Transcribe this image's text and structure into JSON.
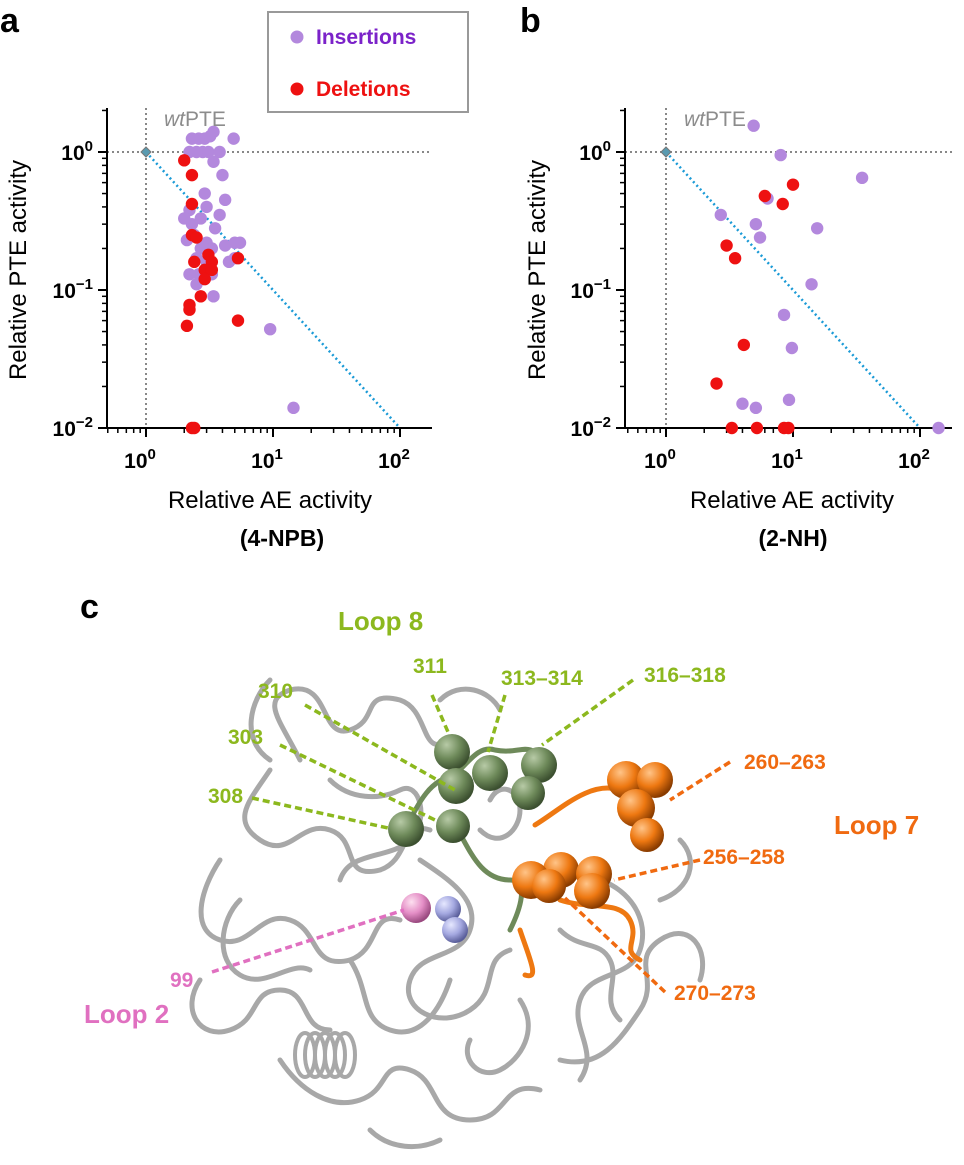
{
  "panels": {
    "a": "a",
    "b": "b",
    "c": "c"
  },
  "legend": {
    "insertions": {
      "label": "Insertions",
      "color": "#b388dd",
      "text_color": "#7b22c9"
    },
    "deletions": {
      "label": "Deletions",
      "color": "#ee1111",
      "text_color": "#ee1111"
    }
  },
  "chart_data": [
    {
      "type": "scatter",
      "panel": "a",
      "xlabel": "Relative AE activity",
      "subtitle": "(4-NPB)",
      "ylabel": "Relative PTE activity",
      "xscale": "log",
      "yscale": "log",
      "xlim": [
        0.5,
        180
      ],
      "ylim": [
        0.01,
        2.2
      ],
      "xticks": [
        {
          "value": 1,
          "base": "10",
          "exp": "0"
        },
        {
          "value": 10,
          "base": "10",
          "exp": "1"
        },
        {
          "value": 100,
          "base": "10",
          "exp": "2"
        }
      ],
      "yticks": [
        {
          "value": 1,
          "base": "10",
          "exp": "0"
        },
        {
          "value": 0.1,
          "base": "10",
          "exp": "−1"
        },
        {
          "value": 0.01,
          "base": "10",
          "exp": "−2"
        }
      ],
      "reference": {
        "label_italic": "wt",
        "label_rest": "PTE",
        "x": 1,
        "y": 1
      },
      "diagonal": {
        "from": [
          1,
          1
        ],
        "to": [
          100,
          0.01
        ]
      },
      "series": [
        {
          "name": "Insertions",
          "points": [
            [
              2.3,
              1.25
            ],
            [
              2.6,
              1.25
            ],
            [
              2.9,
              1.25
            ],
            [
              3.2,
              1.3
            ],
            [
              3.4,
              1.4
            ],
            [
              4.9,
              1.25
            ],
            [
              2.2,
              1.0
            ],
            [
              2.5,
              1.0
            ],
            [
              2.8,
              1.0
            ],
            [
              3.1,
              1.0
            ],
            [
              3.8,
              1.0
            ],
            [
              3.4,
              0.85
            ],
            [
              4.0,
              0.68
            ],
            [
              2.9,
              0.5
            ],
            [
              4.2,
              0.45
            ],
            [
              3.0,
              0.4
            ],
            [
              2.2,
              0.38
            ],
            [
              3.8,
              0.35
            ],
            [
              2.0,
              0.33
            ],
            [
              2.7,
              0.33
            ],
            [
              2.3,
              0.3
            ],
            [
              3.5,
              0.28
            ],
            [
              2.4,
              0.25
            ],
            [
              2.1,
              0.23
            ],
            [
              3.0,
              0.22
            ],
            [
              5.0,
              0.22
            ],
            [
              5.5,
              0.22
            ],
            [
              4.2,
              0.21
            ],
            [
              2.7,
              0.2
            ],
            [
              3.3,
              0.2
            ],
            [
              2.5,
              0.17
            ],
            [
              3.0,
              0.16
            ],
            [
              4.5,
              0.16
            ],
            [
              5.0,
              0.17
            ],
            [
              2.2,
              0.13
            ],
            [
              2.6,
              0.13
            ],
            [
              3.3,
              0.13
            ],
            [
              2.5,
              0.11
            ],
            [
              2.9,
              0.12
            ],
            [
              3.4,
              0.09
            ],
            [
              9.5,
              0.052
            ],
            [
              14.5,
              0.014
            ]
          ]
        },
        {
          "name": "Deletions",
          "points": [
            [
              2.0,
              0.87
            ],
            [
              2.3,
              0.68
            ],
            [
              2.3,
              0.42
            ],
            [
              2.3,
              0.25
            ],
            [
              2.5,
              0.24
            ],
            [
              3.1,
              0.18
            ],
            [
              2.4,
              0.16
            ],
            [
              3.3,
              0.16
            ],
            [
              2.9,
              0.14
            ],
            [
              3.3,
              0.14
            ],
            [
              5.3,
              0.17
            ],
            [
              2.9,
              0.12
            ],
            [
              2.7,
              0.09
            ],
            [
              2.2,
              0.078
            ],
            [
              2.2,
              0.072
            ],
            [
              2.1,
              0.055
            ],
            [
              5.3,
              0.06
            ],
            [
              2.3,
              0.01
            ],
            [
              2.4,
              0.01
            ]
          ]
        }
      ]
    },
    {
      "type": "scatter",
      "panel": "b",
      "xlabel": "Relative AE activity",
      "subtitle": "(2-NH)",
      "ylabel": "Relative PTE activity",
      "xscale": "log",
      "yscale": "log",
      "xlim": [
        0.5,
        180
      ],
      "ylim": [
        0.01,
        2.2
      ],
      "xticks": [
        {
          "value": 1,
          "base": "10",
          "exp": "0"
        },
        {
          "value": 10,
          "base": "10",
          "exp": "1"
        },
        {
          "value": 100,
          "base": "10",
          "exp": "2"
        }
      ],
      "yticks": [
        {
          "value": 1,
          "base": "10",
          "exp": "0"
        },
        {
          "value": 0.1,
          "base": "10",
          "exp": "−1"
        },
        {
          "value": 0.01,
          "base": "10",
          "exp": "−2"
        }
      ],
      "reference": {
        "label_italic": "wt",
        "label_rest": "PTE",
        "x": 1,
        "y": 1
      },
      "diagonal": {
        "from": [
          1,
          1
        ],
        "to": [
          100,
          0.01
        ]
      },
      "series": [
        {
          "name": "Insertions",
          "points": [
            [
              4.9,
              1.55
            ],
            [
              8.0,
              0.95
            ],
            [
              35,
              0.65
            ],
            [
              6.3,
              0.46
            ],
            [
              2.7,
              0.35
            ],
            [
              5.1,
              0.3
            ],
            [
              15.5,
              0.28
            ],
            [
              5.5,
              0.24
            ],
            [
              14,
              0.11
            ],
            [
              8.5,
              0.066
            ],
            [
              9.8,
              0.038
            ],
            [
              4.0,
              0.015
            ],
            [
              5.1,
              0.014
            ],
            [
              9.3,
              0.016
            ],
            [
              140,
              0.01
            ]
          ]
        },
        {
          "name": "Deletions",
          "points": [
            [
              10,
              0.58
            ],
            [
              6.0,
              0.48
            ],
            [
              8.3,
              0.42
            ],
            [
              3.0,
              0.21
            ],
            [
              3.5,
              0.17
            ],
            [
              4.1,
              0.04
            ],
            [
              2.5,
              0.021
            ],
            [
              3.3,
              0.01
            ],
            [
              5.2,
              0.01
            ],
            [
              8.5,
              0.01
            ],
            [
              9.2,
              0.01
            ]
          ]
        }
      ]
    }
  ],
  "structure": {
    "loop8": {
      "title": "Loop 8",
      "color": "#8cb81e",
      "sphere_color": "#6e8a5a",
      "residues": [
        "310",
        "311",
        "313–314",
        "316–318",
        "303",
        "308"
      ]
    },
    "loop7": {
      "title": "Loop 7",
      "color": "#f06a10",
      "sphere_color": "#ee7811",
      "residues": [
        "260–263",
        "256–258",
        "270–273"
      ]
    },
    "loop2": {
      "title": "Loop 2",
      "color": "#e070c0",
      "sphere_color": "#e48ec6",
      "residues": [
        "99"
      ]
    },
    "metal_sphere_color": "#a4a8e0",
    "backbone_color": "#a8a8a8"
  }
}
